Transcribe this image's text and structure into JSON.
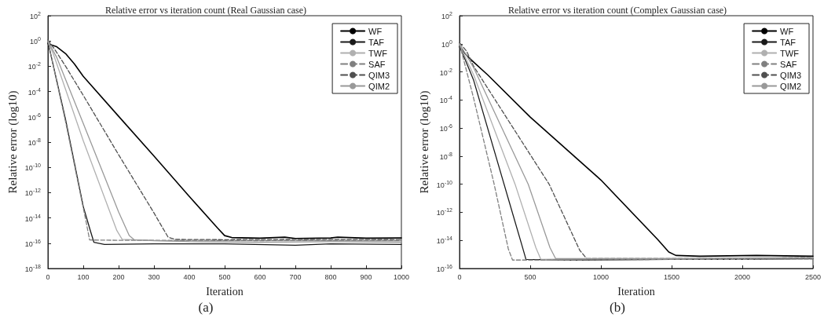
{
  "chart_data": [
    {
      "type": "line",
      "title": "Relative error vs iteration count (Real Gaussian case)",
      "xlabel": "Iteration",
      "ylabel": "Relative error (log10)",
      "annotations": [
        "(a)"
      ],
      "log": "y",
      "grid": false,
      "legend": "top right",
      "xlim": [
        0,
        1000
      ],
      "xticks": [
        0,
        100,
        200,
        300,
        400,
        500,
        600,
        700,
        800,
        900,
        1000
      ],
      "ylim": [
        1e-18,
        100
      ],
      "yticks": [
        {
          "value": 1e-18,
          "label": "10$^{-18}$"
        },
        {
          "value": 1e-16,
          "label": "10$^{-16}$"
        },
        {
          "value": 1e-14,
          "label": "10$^{-14}$"
        },
        {
          "value": 1e-12,
          "label": "10$^{-12}$"
        },
        {
          "value": 1e-10,
          "label": "10$^{-10}$"
        },
        {
          "value": 1e-08,
          "label": "10$^{-8}$"
        },
        {
          "value": 1e-06,
          "label": "10$^{-6}$"
        },
        {
          "value": 0.0001,
          "label": "10$^{-4}$"
        },
        {
          "value": 0.01,
          "label": "10$^{-2}$"
        },
        {
          "value": 1,
          "label": "10$^{0}$"
        },
        {
          "value": 100,
          "label": "10$^{2}$"
        }
      ],
      "series": [
        {
          "name": "WF",
          "color": "#000000",
          "line_style": "solid",
          "x": [
            0,
            25,
            50,
            75,
            100,
            200,
            300,
            400,
            480,
            500,
            520,
            600,
            670,
            700,
            800,
            820,
            900,
            1000
          ],
          "values": [
            0.6,
            0.35,
            0.1,
            0.015,
            0.0016,
            1.1e-06,
            7.9e-10,
            5e-13,
            1.6e-15,
            4e-16,
            2.8e-16,
            2.5e-16,
            3e-16,
            2.4e-16,
            2.6e-16,
            3e-16,
            2.5e-16,
            2.6e-16
          ]
        },
        {
          "name": "TAF",
          "color": "#1a1a1a",
          "line_style": "solid",
          "x": [
            0,
            10,
            50,
            100,
            120,
            130,
            160,
            300,
            500,
            700,
            800,
            1000
          ],
          "values": [
            0.8,
            0.05,
            6e-07,
            8e-14,
            1e-15,
            1.2e-16,
            8e-17,
            9e-17,
            9e-17,
            7e-17,
            9e-17,
            8e-17
          ]
        },
        {
          "name": "TWF",
          "color": "#b0b0b0",
          "line_style": "solid",
          "x": [
            0,
            15,
            100,
            195,
            210,
            300,
            500,
            700,
            1000
          ],
          "values": [
            1,
            0.1,
            1.3e-08,
            1e-15,
            2e-16,
            1.6e-16,
            1.5e-16,
            1.6e-16,
            1.5e-16
          ]
        },
        {
          "name": "SAF",
          "color": "#808080",
          "line_style": "dashed",
          "x": [
            0,
            10,
            50,
            108,
            118,
            200,
            400,
            600,
            800,
            1000
          ],
          "values": [
            1,
            0.05,
            4e-07,
            5e-15,
            1.8e-16,
            1.7e-16,
            1.7e-16,
            1.6e-16,
            1.7e-16,
            1.7e-16
          ]
        },
        {
          "name": "QIM3",
          "color": "#505050",
          "line_style": "dashed",
          "x": [
            0,
            20,
            50,
            100,
            200,
            300,
            340,
            360,
            500,
            700,
            1000
          ],
          "values": [
            1.2,
            0.2,
            0.01,
            5e-05,
            1e-09,
            2.5e-14,
            3e-16,
            2e-16,
            1.9e-16,
            2e-16,
            1.9e-16
          ]
        },
        {
          "name": "QIM2",
          "color": "#999999",
          "line_style": "solid",
          "x": [
            0,
            25,
            100,
            200,
            230,
            245,
            400,
            600,
            800,
            1000
          ],
          "values": [
            1,
            0.05,
            3e-07,
            3e-14,
            4e-16,
            1.8e-16,
            1.3e-16,
            1.2e-16,
            1.3e-16,
            1.2e-16
          ]
        }
      ]
    },
    {
      "type": "line",
      "title": "Relative error vs iteration count (Complex Gaussian case)",
      "xlabel": "Iteration",
      "ylabel": "Relative error (log10)",
      "annotations": [
        "(b)"
      ],
      "log": "y",
      "grid": false,
      "legend": "top right",
      "xlim": [
        0,
        2500
      ],
      "xticks": [
        0,
        500,
        1000,
        1500,
        2000,
        2500
      ],
      "ylim": [
        1e-16,
        100
      ],
      "yticks": [
        {
          "value": 1e-16,
          "label": "10$^{-16}$"
        },
        {
          "value": 1e-14,
          "label": "10$^{-14}$"
        },
        {
          "value": 1e-12,
          "label": "10$^{-12}$"
        },
        {
          "value": 1e-10,
          "label": "10$^{-10}$"
        },
        {
          "value": 1e-08,
          "label": "10$^{-8}$"
        },
        {
          "value": 1e-06,
          "label": "10$^{-6}$"
        },
        {
          "value": 0.0001,
          "label": "10$^{-4}$"
        },
        {
          "value": 0.01,
          "label": "10$^{-2}$"
        },
        {
          "value": 1,
          "label": "10$^{0}$"
        },
        {
          "value": 100,
          "label": "10$^{2}$"
        }
      ],
      "series": [
        {
          "name": "WF",
          "color": "#000000",
          "line_style": "solid",
          "x": [
            0,
            50,
            100,
            200,
            500,
            1000,
            1400,
            1480,
            1530,
            1700,
            2100,
            2500
          ],
          "values": [
            0.6,
            0.15,
            0.05,
            0.006,
            6e-06,
            2e-10,
            1.2e-14,
            1.5e-15,
            8.5e-16,
            7.5e-16,
            8.5e-16,
            7.5e-16
          ]
        },
        {
          "name": "TAF",
          "color": "#1a1a1a",
          "line_style": "solid",
          "x": [
            0,
            100,
            315,
            440,
            470,
            800,
            1500,
            2000,
            2500
          ],
          "values": [
            0.7,
            0.0025,
            1e-10,
            5e-15,
            4.5e-16,
            4e-16,
            4.5e-16,
            4.5e-16,
            5e-16
          ]
        },
        {
          "name": "TWF",
          "color": "#b0b0b0",
          "line_style": "solid",
          "x": [
            0,
            100,
            393,
            540,
            575,
            1000,
            1500,
            2000,
            2500
          ],
          "values": [
            0.8,
            0.006,
            1e-10,
            3e-15,
            4.5e-16,
            5e-16,
            5e-16,
            5.5e-16,
            5.5e-16
          ]
        },
        {
          "name": "SAF",
          "color": "#808080",
          "line_style": "dashed",
          "x": [
            0,
            100,
            245,
            345,
            375,
            600,
            1000,
            1500,
            2000,
            2500
          ],
          "values": [
            1,
            0.00013,
            1e-10,
            2.5e-15,
            4e-16,
            4e-16,
            4.2e-16,
            4.5e-16,
            4.5e-16,
            4.8e-16
          ]
        },
        {
          "name": "QIM3",
          "color": "#505050",
          "line_style": "dashed",
          "x": [
            0,
            50,
            100,
            634,
            850,
            900,
            1200,
            1800,
            2500
          ],
          "values": [
            1.2,
            0.3,
            0.025,
            1e-10,
            2e-15,
            5e-16,
            5e-16,
            5e-16,
            6e-16
          ]
        },
        {
          "name": "QIM2",
          "color": "#999999",
          "line_style": "solid",
          "x": [
            0,
            100,
            486,
            640,
            680,
            1000,
            1500,
            2000,
            2500
          ],
          "values": [
            1,
            0.02,
            1e-10,
            3e-15,
            5e-16,
            5e-16,
            5e-16,
            5.5e-16,
            6e-16
          ]
        }
      ]
    }
  ]
}
